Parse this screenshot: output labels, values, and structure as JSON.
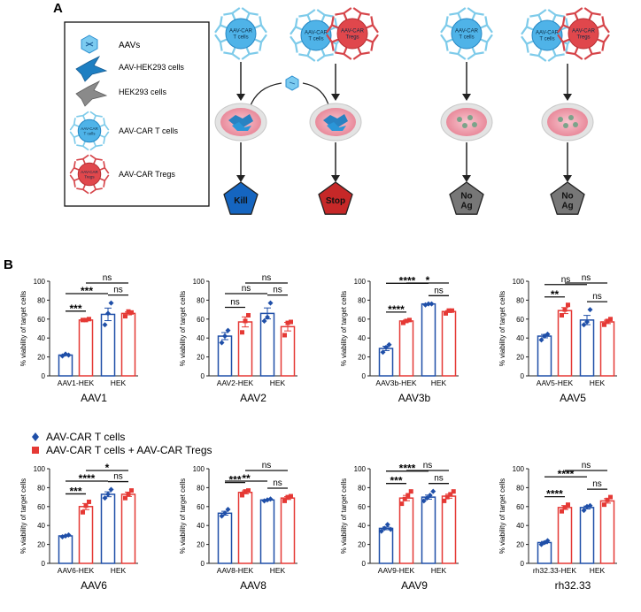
{
  "panel_a": {
    "letter": "A",
    "legend": [
      {
        "key": "aav",
        "label": "AAVs"
      },
      {
        "key": "aav_hek",
        "label": "AAV-HEK293 cells"
      },
      {
        "key": "hek",
        "label": "HEK293 cells"
      },
      {
        "key": "cart",
        "label": "AAV-CAR T cells"
      },
      {
        "key": "treg",
        "label": "AAV-CAR Tregs"
      }
    ],
    "cell_labels": {
      "cart": "AAV-CAR\nT cells",
      "treg": "AAV-CAR\nTregs",
      "legend_cart": "AAV-CAR\nT cells",
      "legend_treg": "AAV-CAR\nTregs"
    },
    "outcomes": [
      {
        "label": "Kill",
        "color": "#1565c0"
      },
      {
        "label": "Stop",
        "color": "#c62828"
      },
      {
        "label": "No\nAg",
        "color": "#777777"
      },
      {
        "label": "No\nAg",
        "color": "#777777"
      }
    ]
  },
  "panel_b": {
    "letter": "B",
    "legend": [
      {
        "label": "AAV-CAR T cells",
        "color": "#1f4fa8",
        "marker": "diamond"
      },
      {
        "label": "AAV-CAR T cells + AAV-CAR Tregs",
        "color": "#e53935",
        "marker": "square"
      }
    ],
    "colors": {
      "blue": "#1f4fa8",
      "red": "#e53935"
    }
  },
  "chart_data": [
    {
      "type": "bar",
      "title": "AAV1",
      "ylabel": "% viability of target cells",
      "ylim": [
        0,
        100
      ],
      "yticks": [
        0,
        20,
        40,
        60,
        80,
        100
      ],
      "categories": [
        "AAV1-HEK",
        "HEK"
      ],
      "series": [
        {
          "name": "AAV-CAR T cells",
          "values": [
            22,
            65
          ],
          "points": [
            [
              21,
              23,
              22
            ],
            [
              54,
              66,
              77
            ]
          ]
        },
        {
          "name": "AAV-CAR T cells + AAV-CAR Tregs",
          "values": [
            59,
            66
          ],
          "points": [
            [
              59,
              59,
              60
            ],
            [
              63,
              68,
              67
            ]
          ]
        }
      ],
      "annotations": [
        {
          "text": "***",
          "from": 0,
          "to": 1,
          "level": 0
        },
        {
          "text": "ns",
          "from": 2,
          "to": 3,
          "level": 0
        },
        {
          "text": "***",
          "from": 0,
          "to": 2,
          "level": 1
        },
        {
          "text": "ns",
          "from": 1,
          "to": 3,
          "level": 2
        }
      ]
    },
    {
      "type": "bar",
      "title": "AAV2",
      "ylabel": "% viability of target cells",
      "ylim": [
        0,
        100
      ],
      "yticks": [
        0,
        20,
        40,
        60,
        80,
        100
      ],
      "categories": [
        "AAV2-HEK",
        "HEK"
      ],
      "series": [
        {
          "name": "AAV-CAR T cells",
          "values": [
            42,
            66
          ],
          "points": [
            [
              35,
              42,
              48
            ],
            [
              58,
              62,
              77
            ]
          ]
        },
        {
          "name": "AAV-CAR T cells + AAV-CAR Tregs",
          "values": [
            57,
            52
          ],
          "points": [
            [
              46,
              58,
              64
            ],
            [
              43,
              56,
              57
            ]
          ]
        }
      ],
      "annotations": [
        {
          "text": "ns",
          "from": 0,
          "to": 1,
          "level": 0
        },
        {
          "text": "ns",
          "from": 2,
          "to": 3,
          "level": 0
        },
        {
          "text": "ns",
          "from": 0,
          "to": 2,
          "level": 1
        },
        {
          "text": "ns",
          "from": 1,
          "to": 3,
          "level": 2
        }
      ]
    },
    {
      "type": "bar",
      "title": "AAV3b",
      "ylabel": "% viability of target cells",
      "ylim": [
        0,
        100
      ],
      "yticks": [
        0,
        20,
        40,
        60,
        80,
        100
      ],
      "categories": [
        "AAV3b-HEK",
        "HEK"
      ],
      "series": [
        {
          "name": "AAV-CAR T cells",
          "values": [
            29,
            76
          ],
          "points": [
            [
              25,
              30,
              33
            ],
            [
              75,
              76,
              76
            ]
          ]
        },
        {
          "name": "AAV-CAR T cells + AAV-CAR Tregs",
          "values": [
            58,
            68
          ],
          "points": [
            [
              56,
              58,
              59
            ],
            [
              66,
              69,
              69
            ]
          ]
        }
      ],
      "annotations": [
        {
          "text": "****",
          "from": 0,
          "to": 1,
          "level": 0
        },
        {
          "text": "ns",
          "from": 2,
          "to": 3,
          "level": 0
        },
        {
          "text": "****",
          "from": 0,
          "to": 2,
          "level": 1
        },
        {
          "text": "*",
          "from": 1,
          "to": 3,
          "level": 2
        }
      ]
    },
    {
      "type": "bar",
      "title": "AAV5",
      "ylabel": "% viability of target cells",
      "ylim": [
        0,
        100
      ],
      "yticks": [
        0,
        20,
        40,
        60,
        80,
        100
      ],
      "categories": [
        "AAV5-HEK",
        "HEK"
      ],
      "series": [
        {
          "name": "AAV-CAR T cells",
          "values": [
            42,
            59
          ],
          "points": [
            [
              38,
              42,
              44
            ],
            [
              54,
              57,
              70
            ]
          ]
        },
        {
          "name": "AAV-CAR T cells + AAV-CAR Tregs",
          "values": [
            69,
            57
          ],
          "points": [
            [
              64,
              70,
              75
            ],
            [
              54,
              58,
              60
            ]
          ]
        }
      ],
      "annotations": [
        {
          "text": "**",
          "from": 0,
          "to": 1,
          "level": 0
        },
        {
          "text": "ns",
          "from": 2,
          "to": 3,
          "level": 0
        },
        {
          "text": "ns",
          "from": 0,
          "to": 2,
          "level": 1
        },
        {
          "text": "ns",
          "from": 1,
          "to": 3,
          "level": 2
        }
      ]
    },
    {
      "type": "bar",
      "title": "AAV6",
      "ylabel": "% viability of target cells",
      "ylim": [
        0,
        100
      ],
      "yticks": [
        0,
        20,
        40,
        60,
        80,
        100
      ],
      "categories": [
        "AAV6-HEK",
        "HEK"
      ],
      "series": [
        {
          "name": "AAV-CAR T cells",
          "values": [
            29,
            73
          ],
          "points": [
            [
              28,
              29,
              30
            ],
            [
              69,
              73,
              78
            ]
          ]
        },
        {
          "name": "AAV-CAR T cells + AAV-CAR Tregs",
          "values": [
            60,
            73
          ],
          "points": [
            [
              54,
              61,
              65
            ],
            [
              69,
              73,
              77
            ]
          ]
        }
      ],
      "annotations": [
        {
          "text": "***",
          "from": 0,
          "to": 1,
          "level": 0
        },
        {
          "text": "ns",
          "from": 2,
          "to": 3,
          "level": 0
        },
        {
          "text": "****",
          "from": 0,
          "to": 2,
          "level": 1
        },
        {
          "text": "*",
          "from": 1,
          "to": 3,
          "level": 2
        }
      ]
    },
    {
      "type": "bar",
      "title": "AAV8",
      "ylabel": "% viability of target cells",
      "ylim": [
        0,
        100
      ],
      "yticks": [
        0,
        20,
        40,
        60,
        80,
        100
      ],
      "categories": [
        "AAV8-HEK",
        "HEK"
      ],
      "series": [
        {
          "name": "AAV-CAR T cells",
          "values": [
            53,
            67
          ],
          "points": [
            [
              50,
              53,
              57
            ],
            [
              66,
              67,
              68
            ]
          ]
        },
        {
          "name": "AAV-CAR T cells + AAV-CAR Tregs",
          "values": [
            75,
            69
          ],
          "points": [
            [
              72,
              76,
              77
            ],
            [
              66,
              70,
              71
            ]
          ]
        }
      ],
      "annotations": [
        {
          "text": "***",
          "from": 0,
          "to": 1,
          "level": 0
        },
        {
          "text": "ns",
          "from": 2,
          "to": 3,
          "level": 0
        },
        {
          "text": "**",
          "from": 0,
          "to": 2,
          "level": 1
        },
        {
          "text": "ns",
          "from": 1,
          "to": 3,
          "level": 2
        }
      ]
    },
    {
      "type": "bar",
      "title": "AAV9",
      "ylabel": "% viability of target cells",
      "ylim": [
        0,
        100
      ],
      "yticks": [
        0,
        20,
        40,
        60,
        80,
        100
      ],
      "categories": [
        "AAV9-HEK",
        "HEK"
      ],
      "series": [
        {
          "name": "AAV-CAR T cells",
          "values": [
            37,
            70
          ],
          "points": [
            [
              34,
              37,
              41,
              36
            ],
            [
              66,
              69,
              72,
              76
            ]
          ]
        },
        {
          "name": "AAV-CAR T cells + AAV-CAR Tregs",
          "values": [
            69,
            71
          ],
          "points": [
            [
              63,
              68,
              72,
              76
            ],
            [
              66,
              70,
              73,
              76
            ]
          ]
        }
      ],
      "annotations": [
        {
          "text": "***",
          "from": 0,
          "to": 1,
          "level": 0
        },
        {
          "text": "ns",
          "from": 2,
          "to": 3,
          "level": 0
        },
        {
          "text": "****",
          "from": 0,
          "to": 2,
          "level": 1
        },
        {
          "text": "ns",
          "from": 1,
          "to": 3,
          "level": 2
        }
      ]
    },
    {
      "type": "bar",
      "title": "rh32.33",
      "ylabel": "% viability of target cells",
      "ylim": [
        0,
        100
      ],
      "yticks": [
        0,
        20,
        40,
        60,
        80,
        100
      ],
      "categories": [
        "rh32.33-HEK",
        "HEK"
      ],
      "series": [
        {
          "name": "AAV-CAR T cells",
          "values": [
            22,
            59
          ],
          "points": [
            [
              20,
              22,
              24
            ],
            [
              56,
              60,
              61
            ]
          ]
        },
        {
          "name": "AAV-CAR T cells + AAV-CAR Tregs",
          "values": [
            59,
            66
          ],
          "points": [
            [
              55,
              59,
              62
            ],
            [
              62,
              67,
              70
            ]
          ]
        }
      ],
      "annotations": [
        {
          "text": "****",
          "from": 0,
          "to": 1,
          "level": 0
        },
        {
          "text": "ns",
          "from": 2,
          "to": 3,
          "level": 0
        },
        {
          "text": "****",
          "from": 0,
          "to": 2,
          "level": 1
        },
        {
          "text": "ns",
          "from": 1,
          "to": 3,
          "level": 2
        }
      ]
    }
  ]
}
